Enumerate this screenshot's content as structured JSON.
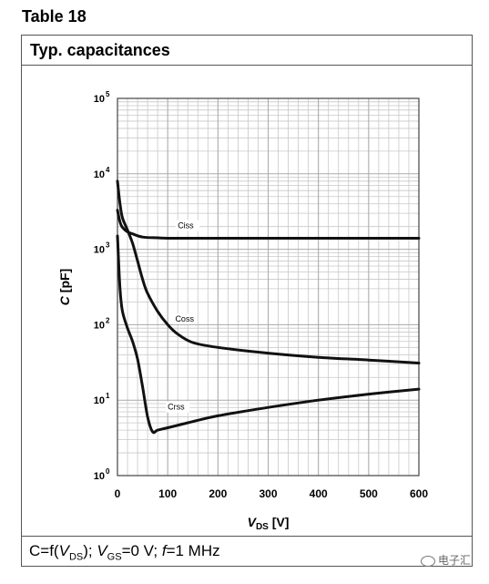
{
  "table_label": "Table 18",
  "chart_title": "Typ. capacitances",
  "footer": {
    "c_part": "C=f(",
    "v_ds": "V",
    "v_ds_sub": "DS",
    "after_vds": "); ",
    "v_gs": "V",
    "v_gs_sub": "GS",
    "gs_value": "=0 V; ",
    "f_symbol": "f",
    "f_value": "=1 MHz"
  },
  "watermark": "电子汇",
  "chart_data": {
    "type": "line",
    "title": "Typ. capacitances",
    "xlabel": {
      "symbol": "V",
      "sub": "DS",
      "unit": " [V]"
    },
    "ylabel": {
      "symbol": "C",
      "unit": " [pF]"
    },
    "xlim": [
      0,
      600
    ],
    "ylim": [
      1,
      100000
    ],
    "yscale": "log",
    "grid": true,
    "x_ticks": [
      0,
      100,
      200,
      300,
      400,
      500,
      600
    ],
    "y_ticks": [
      {
        "value": 1,
        "base": "10",
        "exp": "0"
      },
      {
        "value": 10,
        "base": "10",
        "exp": "1"
      },
      {
        "value": 100,
        "base": "10",
        "exp": "2"
      },
      {
        "value": 1000,
        "base": "10",
        "exp": "3"
      },
      {
        "value": 10000,
        "base": "10",
        "exp": "4"
      },
      {
        "value": 100000,
        "base": "10",
        "exp": "5"
      }
    ],
    "series": [
      {
        "name": "Ciss",
        "label_at": [
          120,
          1900
        ],
        "x": [
          0,
          5,
          10,
          20,
          30,
          50,
          80,
          100,
          150,
          200,
          300,
          400,
          500,
          600
        ],
        "y": [
          3300,
          2300,
          1950,
          1700,
          1600,
          1450,
          1420,
          1400,
          1400,
          1400,
          1400,
          1400,
          1400,
          1400
        ]
      },
      {
        "name": "Coss",
        "label_at": [
          115,
          110
        ],
        "x": [
          0,
          5,
          10,
          20,
          30,
          40,
          50,
          60,
          80,
          100,
          120,
          150,
          200,
          300,
          400,
          500,
          600
        ],
        "y": [
          8000,
          4000,
          2600,
          1800,
          1200,
          700,
          400,
          260,
          150,
          100,
          75,
          58,
          50,
          42,
          37,
          34,
          31
        ]
      },
      {
        "name": "Crss",
        "label_at": [
          100,
          7.5
        ],
        "x": [
          0,
          5,
          10,
          20,
          30,
          40,
          50,
          60,
          70,
          80,
          100,
          150,
          200,
          300,
          400,
          500,
          600
        ],
        "y": [
          1500,
          300,
          150,
          90,
          60,
          35,
          15,
          6,
          3.8,
          4.0,
          4.3,
          5.2,
          6.2,
          8.0,
          10,
          12,
          14
        ]
      }
    ]
  }
}
